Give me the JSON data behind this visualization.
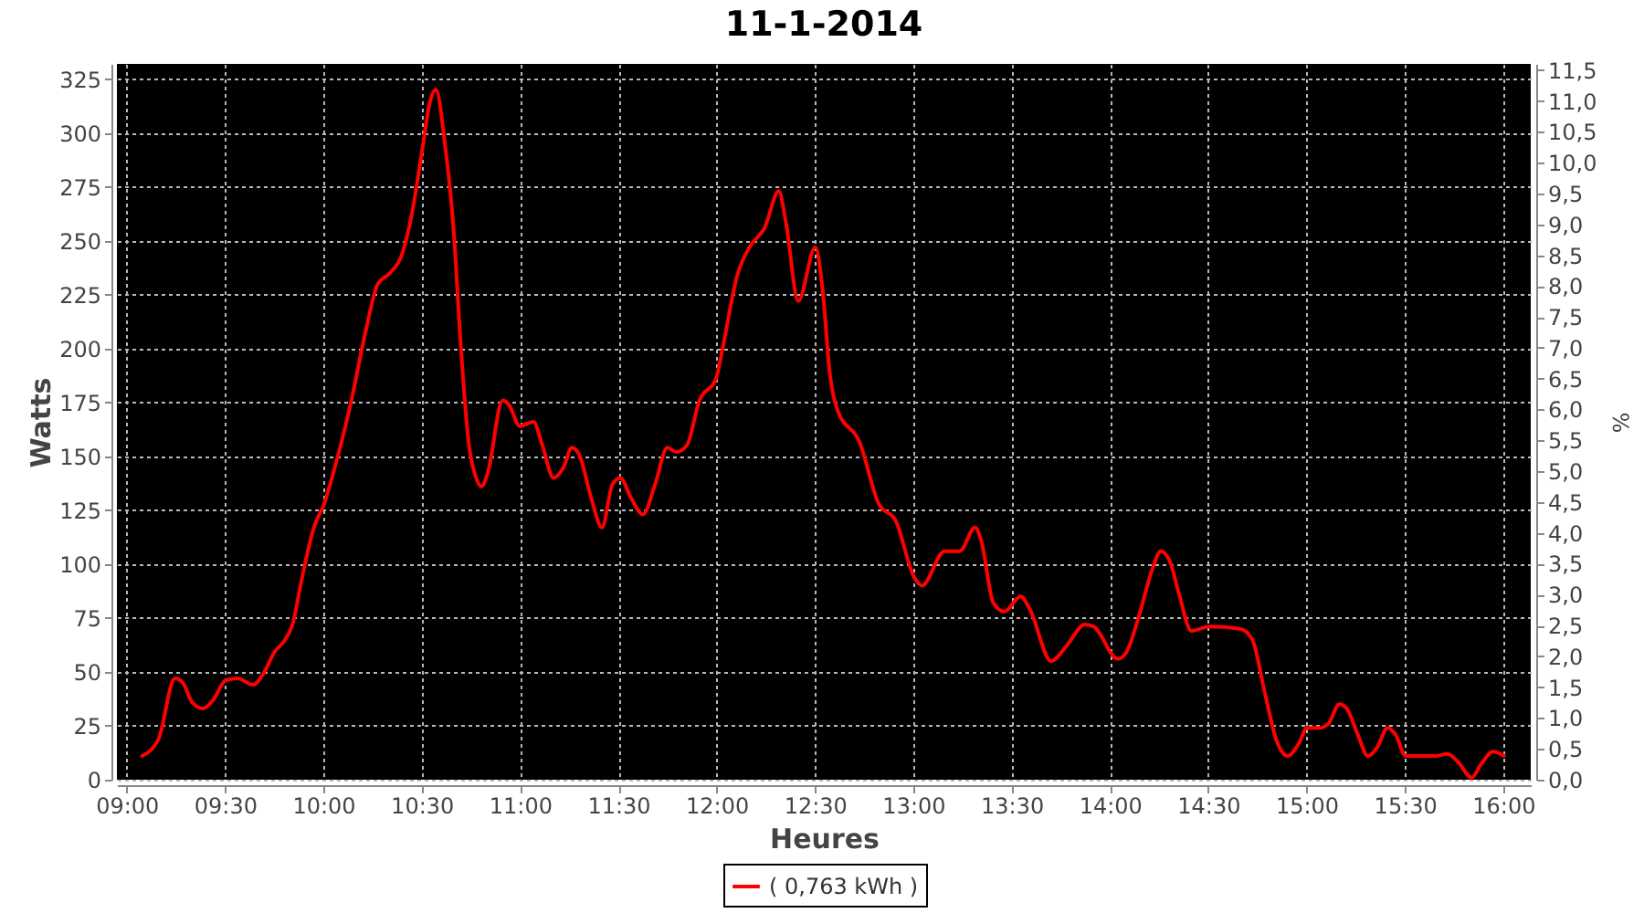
{
  "chart_data": {
    "type": "line",
    "title": "11-1-2014",
    "xlabel": "Heures",
    "ylabel": "Watts",
    "y2label": "%",
    "x": [
      9.078,
      9.162,
      9.245,
      9.285,
      9.332,
      9.388,
      9.44,
      9.502,
      9.564,
      9.642,
      9.694,
      9.75,
      9.806,
      9.843,
      9.89,
      9.952,
      10.004,
      10.076,
      10.138,
      10.215,
      10.277,
      10.339,
      10.401,
      10.447,
      10.506,
      10.541,
      10.572,
      10.618,
      10.664,
      10.696,
      10.742,
      10.773,
      10.804,
      10.835,
      10.912,
      10.943,
      10.999,
      11.068,
      11.114,
      11.17,
      11.222,
      11.263,
      11.3,
      11.361,
      11.417,
      11.47,
      11.51,
      11.563,
      11.625,
      11.687,
      11.749,
      11.795,
      11.848,
      11.913,
      11.997,
      12.028,
      12.105,
      12.167,
      12.244,
      12.316,
      12.353,
      12.415,
      12.502,
      12.539,
      12.576,
      12.616,
      12.725,
      12.824,
      12.911,
      13.004,
      13.044,
      13.159,
      13.236,
      13.314,
      13.345,
      13.407,
      13.463,
      13.546,
      13.593,
      13.701,
      13.779,
      13.872,
      13.918,
      14.04,
      14.083,
      14.151,
      14.213,
      14.259,
      14.306,
      14.352,
      14.414,
      14.507,
      14.662,
      14.724,
      14.786,
      14.848,
      14.903,
      14.956,
      15.003,
      15.065,
      15.111,
      15.167,
      15.204,
      15.26,
      15.312,
      15.359,
      15.412,
      15.452,
      15.505,
      15.592,
      15.654,
      15.716,
      15.763,
      15.84,
      15.886,
      15.948,
      16.004
    ],
    "series": [
      {
        "name": "( 0,763 kWh )",
        "color": "#ff0000",
        "values": [
          11,
          19,
          47,
          45,
          36,
          33,
          37,
          46,
          47,
          44,
          49,
          59,
          65,
          72,
          93,
          117,
          128,
          151,
          174,
          208,
          230,
          235,
          244,
          261,
          294,
          314,
          320,
          295,
          253,
          205,
          154,
          141,
          136,
          142,
          176,
          174,
          164,
          166,
          155,
          140,
          145,
          154,
          151,
          131,
          117,
          137,
          140,
          131,
          123,
          137,
          154,
          152,
          155,
          176,
          186,
          199,
          234,
          247,
          256,
          273,
          258,
          222,
          247,
          227,
          188,
          171,
          157,
          128,
          120,
          94,
          90,
          106,
          106,
          117,
          111,
          82,
          78,
          85,
          79,
          55,
          62,
          72,
          71,
          56,
          59,
          77,
          97,
          106,
          101,
          86,
          69,
          71,
          70,
          65,
          41,
          18,
          11,
          16,
          24,
          24,
          26,
          35,
          33,
          21,
          11,
          15,
          24,
          21,
          11,
          11,
          11,
          12,
          9,
          1,
          7,
          13,
          11
        ]
      }
    ],
    "xlim": [
      8.95,
      16.14
    ],
    "xticks": [
      {
        "value": 9,
        "label": "09:00"
      },
      {
        "value": 9.5,
        "label": "09:30"
      },
      {
        "value": 10,
        "label": "10:00"
      },
      {
        "value": 10.5,
        "label": "10:30"
      },
      {
        "value": 11,
        "label": "11:00"
      },
      {
        "value": 11.5,
        "label": "11:30"
      },
      {
        "value": 12,
        "label": "12:00"
      },
      {
        "value": 12.5,
        "label": "12:30"
      },
      {
        "value": 13,
        "label": "13:00"
      },
      {
        "value": 13.5,
        "label": "13:30"
      },
      {
        "value": 14,
        "label": "14:00"
      },
      {
        "value": 14.5,
        "label": "14:30"
      },
      {
        "value": 15,
        "label": "15:00"
      },
      {
        "value": 15.5,
        "label": "15:30"
      },
      {
        "value": 16,
        "label": "16:00"
      }
    ],
    "ylim": [
      0,
      332
    ],
    "yticks": [
      0,
      25,
      50,
      75,
      100,
      125,
      150,
      175,
      200,
      225,
      250,
      275,
      300,
      325
    ],
    "y2lim": [
      0,
      11.6
    ],
    "y2ticks": [
      {
        "value": 0,
        "label": "0,0"
      },
      {
        "value": 0.5,
        "label": "0,5"
      },
      {
        "value": 1,
        "label": "1,0"
      },
      {
        "value": 1.5,
        "label": "1,5"
      },
      {
        "value": 2,
        "label": "2,0"
      },
      {
        "value": 2.5,
        "label": "2,5"
      },
      {
        "value": 3,
        "label": "3,0"
      },
      {
        "value": 3.5,
        "label": "3,5"
      },
      {
        "value": 4,
        "label": "4,0"
      },
      {
        "value": 4.5,
        "label": "4,5"
      },
      {
        "value": 5,
        "label": "5,0"
      },
      {
        "value": 5.5,
        "label": "5,5"
      },
      {
        "value": 6,
        "label": "6,0"
      },
      {
        "value": 6.5,
        "label": "6,5"
      },
      {
        "value": 7,
        "label": "7,0"
      },
      {
        "value": 7.5,
        "label": "7,5"
      },
      {
        "value": 8,
        "label": "8,0"
      },
      {
        "value": 8.5,
        "label": "8,5"
      },
      {
        "value": 9,
        "label": "9,0"
      },
      {
        "value": 9.5,
        "label": "9,5"
      },
      {
        "value": 10,
        "label": "10,0"
      },
      {
        "value": 10.5,
        "label": "10,5"
      },
      {
        "value": 11,
        "label": "11,0"
      },
      {
        "value": 11.5,
        "label": "11,5"
      }
    ],
    "grid": true,
    "legend": "bottom"
  }
}
